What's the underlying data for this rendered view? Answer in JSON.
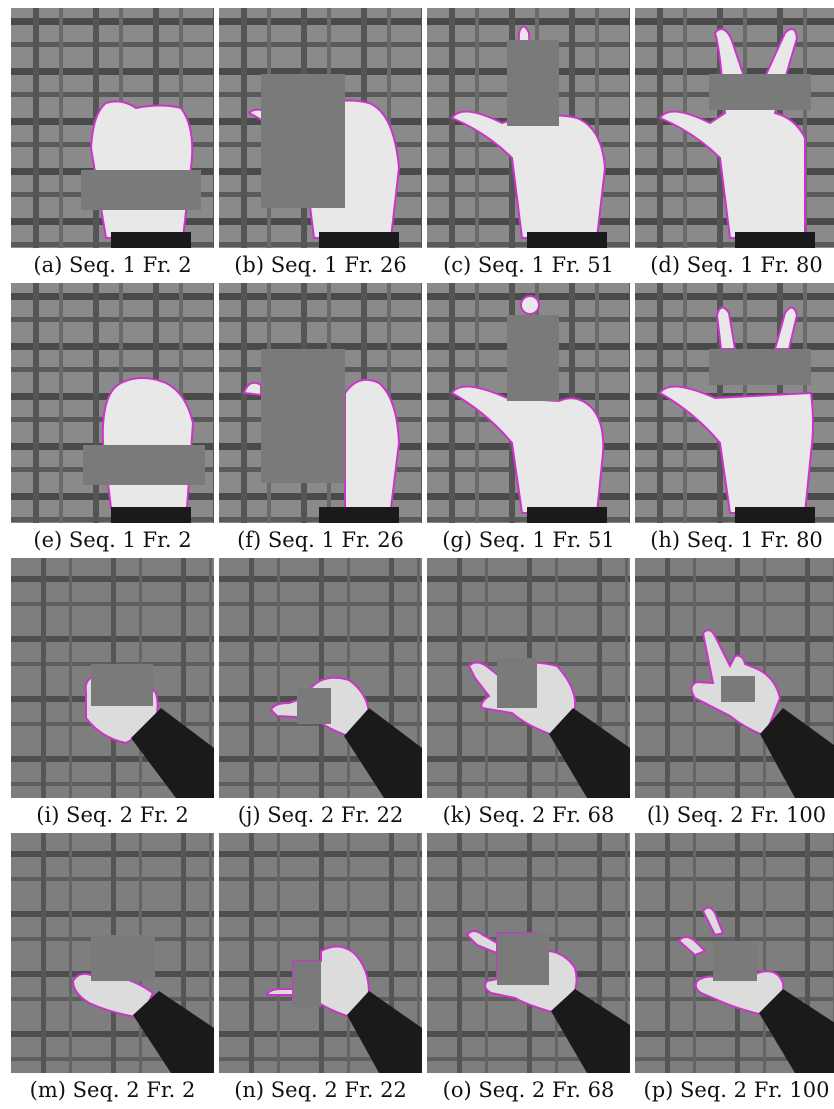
{
  "figure": {
    "panels": [
      {
        "caption": "(a) Seq. 1 Fr. 2"
      },
      {
        "caption": "(b) Seq. 1 Fr. 26"
      },
      {
        "caption": "(c) Seq. 1 Fr. 51"
      },
      {
        "caption": "(d) Seq. 1 Fr. 80"
      },
      {
        "caption": "(e) Seq. 1 Fr. 2"
      },
      {
        "caption": "(f) Seq. 1 Fr. 26"
      },
      {
        "caption": "(g) Seq. 1 Fr. 51"
      },
      {
        "caption": "(h) Seq. 1 Fr. 80"
      },
      {
        "caption": "(i) Seq. 2 Fr. 2"
      },
      {
        "caption": "(j) Seq. 2 Fr. 22"
      },
      {
        "caption": "(k) Seq. 2 Fr. 68"
      },
      {
        "caption": "(l) Seq. 2 Fr. 100"
      },
      {
        "caption": "(m) Seq. 2 Fr. 2"
      },
      {
        "caption": "(n) Seq. 2 Fr. 22"
      },
      {
        "caption": "(o) Seq. 2 Fr. 68"
      },
      {
        "caption": "(p) Seq. 2 Fr. 100"
      }
    ],
    "colors": {
      "contour": "#cc33cc",
      "occluder": "#7a7a7a",
      "hand": "#e6e6e6",
      "sleeve": "#1a1a1a"
    }
  }
}
